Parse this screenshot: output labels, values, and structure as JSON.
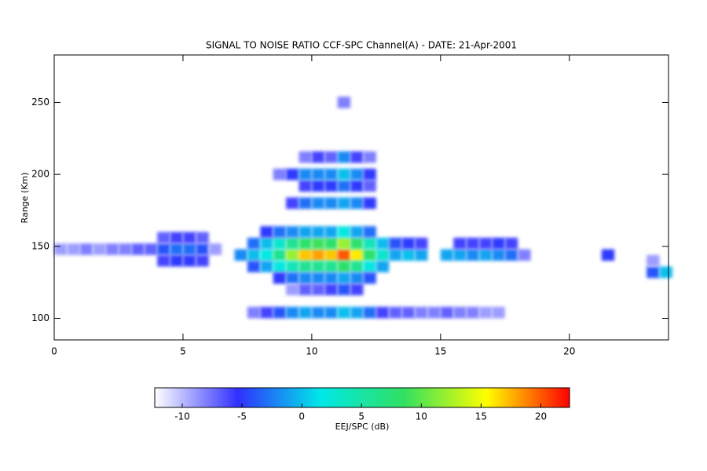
{
  "chart_data": {
    "type": "heatmap",
    "title": "SIGNAL TO NOISE RATIO CCF-SPC Channel(A) - DATE: 21-Apr-2001",
    "y_label": "Range (Km)",
    "colorbar_label": "EEJ/SPC (dB)",
    "xlim": [
      0,
      23.85
    ],
    "xticks": [
      0,
      5,
      10,
      15,
      20
    ],
    "ylim": [
      85,
      283
    ],
    "yticks": [
      100,
      150,
      200,
      250
    ],
    "clim": [
      -12.3,
      22.4
    ],
    "cticks": [
      -10,
      -5,
      0,
      5,
      10,
      15,
      20
    ],
    "colorscale": [
      "#ffffff",
      "#3030ff",
      "#00e8e8",
      "#30e060",
      "#ffff00",
      "#ff0000"
    ],
    "rows": [
      {
        "y": 148,
        "x": [
          0.25,
          0.75,
          1.25,
          1.75,
          2.25,
          2.75,
          3.25,
          3.75,
          4.25,
          4.75,
          5.25,
          5.75,
          6.25
        ],
        "values": [
          -9,
          -9,
          -8,
          -9,
          -8,
          -8,
          -7,
          -7,
          -4,
          -3,
          -3,
          -4,
          -9
        ]
      },
      {
        "y": 140,
        "x": [
          4.25,
          4.75,
          5.25,
          5.75
        ],
        "values": [
          -6,
          -5,
          -5,
          -6
        ]
      },
      {
        "y": 156,
        "x": [
          4.25,
          4.75,
          5.25,
          5.75
        ],
        "values": [
          -7,
          -6,
          -6,
          -7
        ]
      },
      {
        "y": 144,
        "x": [
          7.25,
          7.75,
          8.25,
          8.75,
          9.25,
          9.75,
          10.25,
          10.75,
          11.25,
          11.75,
          12.25,
          12.75,
          13.25,
          13.75,
          14.25,
          15.25,
          15.75,
          16.25,
          16.75,
          17.25,
          17.75,
          18.25,
          21.5
        ],
        "values": [
          -2,
          0,
          2,
          6,
          12,
          17,
          18,
          17,
          20,
          16,
          8,
          3,
          -1,
          0,
          -1,
          -1,
          -1,
          -2,
          -1,
          -2,
          -3,
          -8,
          -5
        ]
      },
      {
        "y": 152,
        "x": [
          7.75,
          8.25,
          8.75,
          9.25,
          9.75,
          10.25,
          10.75,
          11.25,
          11.75,
          12.25,
          12.75,
          13.25,
          13.75,
          14.25,
          15.75,
          16.25,
          16.75,
          17.25,
          17.75
        ],
        "values": [
          -3,
          0,
          3,
          6,
          8,
          9,
          8,
          12,
          8,
          4,
          0,
          -4,
          -5,
          -6,
          -6,
          -6,
          -6,
          -5,
          -6
        ]
      },
      {
        "y": 136,
        "x": [
          7.75,
          8.25,
          8.75,
          9.25,
          9.75,
          10.25,
          10.75,
          11.25,
          11.75,
          12.25,
          12.75
        ],
        "values": [
          -4,
          -1,
          2,
          4,
          6,
          6,
          6,
          8,
          6,
          2,
          -1
        ]
      },
      {
        "y": 160,
        "x": [
          8.25,
          8.75,
          9.25,
          9.75,
          10.25,
          10.75,
          11.25,
          11.75,
          12.25
        ],
        "values": [
          -5,
          -3,
          -2,
          -1,
          -1,
          -1,
          2,
          -1,
          -3
        ]
      },
      {
        "y": 128,
        "x": [
          8.75,
          9.25,
          9.75,
          10.25,
          10.75,
          11.25,
          11.75,
          12.25
        ],
        "values": [
          -5,
          -3,
          -2,
          -2,
          -2,
          -1,
          -2,
          -4
        ]
      },
      {
        "y": 120,
        "x": [
          9.25,
          9.75,
          10.25,
          10.75,
          11.25,
          11.75
        ],
        "values": [
          -9,
          -7,
          -7,
          -6,
          -4,
          -6
        ]
      },
      {
        "y": 180,
        "x": [
          9.25,
          9.75,
          10.25,
          10.75,
          11.25,
          11.75,
          12.25
        ],
        "values": [
          -6,
          -3,
          -2,
          -2,
          -1,
          -2,
          -5
        ]
      },
      {
        "y": 192,
        "x": [
          9.75,
          10.25,
          10.75,
          11.25,
          11.75,
          12.25
        ],
        "values": [
          -6,
          -5,
          -5,
          -3,
          -5,
          -7
        ]
      },
      {
        "y": 200,
        "x": [
          8.75,
          9.25,
          9.75,
          10.25,
          10.75,
          11.25,
          11.75,
          12.25
        ],
        "values": [
          -8,
          -5,
          -2,
          -2,
          -2,
          0,
          -2,
          -5
        ]
      },
      {
        "y": 212,
        "x": [
          9.75,
          10.25,
          10.75,
          11.25,
          11.75,
          12.25
        ],
        "values": [
          -8,
          -6,
          -7,
          -2,
          -6,
          -8
        ]
      },
      {
        "y": 250,
        "x": [
          11.25
        ],
        "values": [
          -8
        ]
      },
      {
        "y": 104,
        "x": [
          7.75,
          8.25,
          8.75,
          9.25,
          9.75,
          10.25,
          10.75,
          11.25,
          11.75,
          12.25,
          12.75,
          13.25,
          13.75,
          14.25,
          14.75,
          15.25,
          15.75,
          16.25,
          16.75,
          17.25
        ],
        "values": [
          -8,
          -6,
          -4,
          -2,
          -1,
          -2,
          -2,
          0,
          -1,
          -3,
          -6,
          -7,
          -7,
          -8,
          -8,
          -7,
          -8,
          -8,
          -9,
          -9
        ]
      },
      {
        "y": 132,
        "x": [
          23.25,
          23.75
        ],
        "values": [
          -4,
          0
        ]
      },
      {
        "y": 140,
        "x": [
          23.25
        ],
        "values": [
          -9
        ]
      }
    ]
  }
}
